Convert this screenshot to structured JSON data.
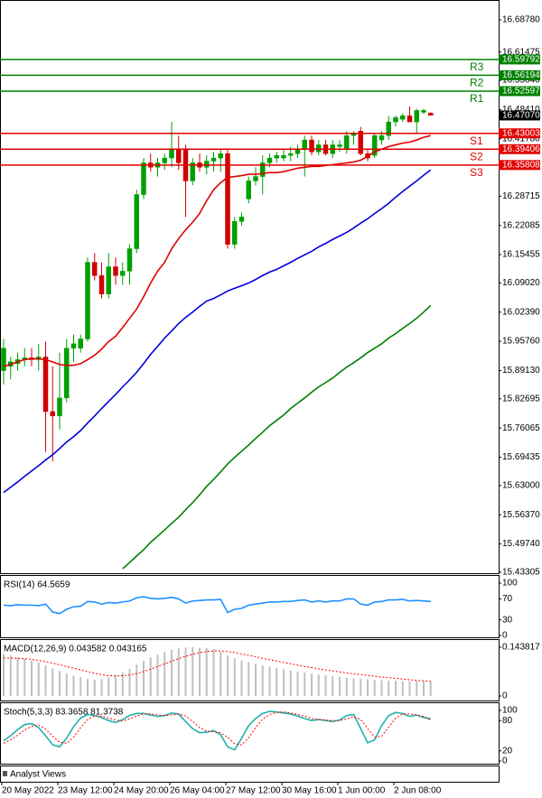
{
  "chart_data": [
    {
      "type": "candlestick",
      "categories": [
        "20 May 2022",
        null,
        null,
        null,
        null,
        null,
        null,
        null,
        "23 May 12:00",
        null,
        null,
        null,
        null,
        null,
        null,
        null,
        "24 May 20:00",
        null,
        null,
        null,
        null,
        null,
        null,
        null,
        "26 May 04:00",
        null,
        null,
        null,
        null,
        null,
        null,
        null,
        "27 May 12:00",
        null,
        null,
        null,
        null,
        null,
        null,
        null,
        "30 May 16:00",
        null,
        null,
        null,
        null,
        null,
        null,
        null,
        "1 Jun 00:00",
        null,
        null,
        null,
        null,
        null,
        null,
        null,
        "2 Jun 08:00",
        null,
        null,
        null,
        null,
        null
      ],
      "open": [
        15.891,
        15.901,
        15.907,
        15.916,
        15.92,
        15.916,
        15.922,
        15.798,
        15.788,
        15.829,
        15.942,
        15.942,
        15.963,
        16.137,
        16.107,
        16.065,
        16.127,
        16.107,
        16.117,
        16.168,
        16.291,
        16.363,
        16.353,
        16.363,
        16.374,
        16.394,
        16.394,
        16.322,
        16.363,
        16.353,
        16.367,
        16.374,
        16.384,
        16.178,
        16.23,
        16.281,
        16.322,
        16.332,
        16.363,
        16.374,
        16.374,
        16.38,
        16.384,
        16.394,
        16.415,
        16.388,
        16.404,
        16.384,
        16.4,
        16.394,
        16.425,
        16.435,
        16.384,
        16.38,
        16.415,
        16.425,
        16.456,
        16.462,
        16.47,
        16.456,
        16.478,
        16.476
      ],
      "high": [
        15.963,
        15.922,
        15.932,
        15.942,
        15.942,
        15.952,
        15.957,
        15.901,
        15.932,
        15.963,
        15.973,
        15.973,
        16.148,
        16.158,
        16.137,
        16.158,
        16.148,
        16.137,
        16.178,
        16.302,
        16.374,
        16.384,
        16.374,
        16.384,
        16.456,
        16.425,
        16.404,
        16.374,
        16.384,
        16.38,
        16.388,
        16.394,
        16.394,
        16.24,
        16.25,
        16.332,
        16.353,
        16.38,
        16.384,
        16.388,
        16.394,
        16.4,
        16.404,
        16.425,
        16.425,
        16.415,
        16.415,
        16.415,
        16.415,
        16.435,
        16.435,
        16.445,
        16.394,
        16.429,
        16.435,
        16.47,
        16.47,
        16.476,
        16.491,
        16.486,
        16.486,
        16.478
      ],
      "low": [
        15.86,
        15.871,
        15.891,
        15.901,
        15.901,
        15.891,
        15.706,
        15.685,
        15.757,
        15.819,
        15.911,
        15.932,
        15.957,
        16.096,
        16.055,
        16.055,
        16.086,
        16.086,
        16.086,
        16.158,
        16.281,
        16.343,
        16.332,
        16.347,
        16.353,
        16.347,
        16.24,
        16.312,
        16.343,
        16.337,
        16.343,
        16.343,
        16.168,
        16.168,
        16.22,
        16.271,
        16.312,
        16.291,
        16.353,
        16.363,
        16.367,
        16.367,
        16.374,
        16.332,
        16.38,
        16.38,
        16.38,
        16.374,
        16.388,
        16.384,
        16.404,
        16.38,
        16.367,
        16.374,
        16.404,
        16.415,
        16.445,
        16.456,
        16.456,
        16.429,
        16.474,
        16.474
      ],
      "close": [
        15.942,
        15.911,
        15.916,
        15.92,
        15.916,
        15.922,
        15.798,
        15.788,
        15.829,
        15.942,
        15.952,
        15.963,
        16.137,
        16.107,
        16.065,
        16.127,
        16.107,
        16.117,
        16.168,
        16.291,
        16.363,
        16.353,
        16.363,
        16.374,
        16.394,
        16.363,
        16.322,
        16.363,
        16.353,
        16.367,
        16.374,
        16.384,
        16.178,
        16.23,
        16.24,
        16.322,
        16.332,
        16.363,
        16.374,
        16.38,
        16.38,
        16.384,
        16.394,
        16.415,
        16.388,
        16.404,
        16.384,
        16.404,
        16.404,
        16.425,
        16.429,
        16.384,
        16.374,
        16.425,
        16.425,
        16.456,
        16.466,
        16.47,
        16.456,
        16.482,
        16.482,
        16.471
      ],
      "up_color": "#00a000",
      "down_color": "#d00000",
      "series": [
        {
          "color": "#e00000",
          "values": [
            15.901,
            15.905,
            15.911,
            15.916,
            15.918,
            15.918,
            15.916,
            15.911,
            15.905,
            15.903,
            15.903,
            15.907,
            15.916,
            15.926,
            15.94,
            15.957,
            15.969,
            15.989,
            16.01,
            16.031,
            16.059,
            16.09,
            16.117,
            16.137,
            16.168,
            16.191,
            16.211,
            16.228,
            16.248,
            16.277,
            16.302,
            16.318,
            16.33,
            16.332,
            16.334,
            16.337,
            16.337,
            16.339,
            16.341,
            16.341,
            16.343,
            16.347,
            16.351,
            16.353,
            16.355,
            16.355,
            16.357,
            16.359,
            16.361,
            16.363,
            16.365,
            16.369,
            16.378,
            16.388,
            16.394,
            16.4,
            16.404,
            16.408,
            16.41,
            16.415,
            16.421,
            16.425
          ]
        },
        {
          "color": "#0000dd",
          "values": [
            15.614,
            15.626,
            15.638,
            15.651,
            15.663,
            15.675,
            15.688,
            15.7,
            15.714,
            15.729,
            15.741,
            15.755,
            15.772,
            15.788,
            15.805,
            15.821,
            15.837,
            15.854,
            15.87,
            15.887,
            15.907,
            15.928,
            15.946,
            15.965,
            15.981,
            15.998,
            16.012,
            16.024,
            16.037,
            16.049,
            16.055,
            16.063,
            16.072,
            16.078,
            16.084,
            16.09,
            16.098,
            16.107,
            16.115,
            16.121,
            16.129,
            16.137,
            16.146,
            16.154,
            16.162,
            16.172,
            16.18,
            16.189,
            16.197,
            16.205,
            16.215,
            16.226,
            16.236,
            16.248,
            16.259,
            16.271,
            16.285,
            16.298,
            16.31,
            16.322,
            16.335,
            16.347
          ]
        },
        {
          "color": "#008000",
          "values": [
            null,
            null,
            null,
            null,
            null,
            null,
            null,
            null,
            null,
            null,
            null,
            null,
            null,
            null,
            null,
            null,
            null,
            15.441,
            15.455,
            15.47,
            15.484,
            15.501,
            15.515,
            15.529,
            15.544,
            15.558,
            15.575,
            15.591,
            15.609,
            15.628,
            15.644,
            15.661,
            15.679,
            15.694,
            15.708,
            15.722,
            15.737,
            15.751,
            15.766,
            15.778,
            15.79,
            15.805,
            15.817,
            15.829,
            15.842,
            15.854,
            15.864,
            15.874,
            15.887,
            15.899,
            15.909,
            15.92,
            15.932,
            15.942,
            15.952,
            15.965,
            15.975,
            15.987,
            15.998,
            16.01,
            16.024,
            16.039
          ]
        }
      ],
      "levels": [
        {
          "label": "R3",
          "value": 16.59792,
          "color": "#008000"
        },
        {
          "label": "R2",
          "value": 16.56194,
          "color": "#008000"
        },
        {
          "label": "R1",
          "value": 16.52597,
          "color": "#008000"
        },
        {
          "label": "S1",
          "value": 16.43003,
          "color": "#e00000"
        },
        {
          "label": "S2",
          "value": 16.39406,
          "color": "#e00000"
        },
        {
          "label": "S3",
          "value": 16.35808,
          "color": "#e00000"
        }
      ],
      "last_price": {
        "value": 16.4707,
        "label": "16.47070"
      },
      "ylim": [
        15.4287,
        16.733
      ],
      "yticks": [
        {
          "value": 16.6878,
          "label": "16.68780"
        },
        {
          "value": 16.61475,
          "label": "16.61475"
        },
        {
          "value": 16.5504,
          "label": "16.55040"
        },
        {
          "value": 16.4841,
          "label": "16.48410"
        },
        {
          "value": 16.4178,
          "label": "16.41780"
        },
        {
          "value": 16.28715,
          "label": "16.28715"
        },
        {
          "value": 16.22085,
          "label": "16.22085"
        },
        {
          "value": 16.15455,
          "label": "16.15455"
        },
        {
          "value": 16.0902,
          "label": "16.09020"
        },
        {
          "value": 16.0239,
          "label": "16.02390"
        },
        {
          "value": 15.9576,
          "label": "15.95760"
        },
        {
          "value": 15.8913,
          "label": "15.89130"
        },
        {
          "value": 15.82695,
          "label": "15.82695"
        },
        {
          "value": 15.76065,
          "label": "15.76065"
        },
        {
          "value": 15.69435,
          "label": "15.69435"
        },
        {
          "value": 15.63,
          "label": "15.63000"
        },
        {
          "value": 15.5637,
          "label": "15.56370"
        },
        {
          "value": 15.4974,
          "label": "15.49740"
        },
        {
          "value": 15.43305,
          "label": "15.43305"
        }
      ]
    },
    {
      "type": "line",
      "title": "RSI(14) 64.5659",
      "series": [
        {
          "color": "#1e90ff",
          "values": [
            58,
            57,
            59,
            58,
            58,
            57,
            60,
            45,
            42,
            50,
            55,
            56,
            65,
            64,
            60,
            63,
            62,
            64,
            66,
            72,
            74,
            71,
            70,
            71,
            73,
            70,
            62,
            66,
            67,
            68,
            68,
            69,
            44,
            50,
            52,
            58,
            60,
            62,
            64,
            64,
            65,
            65,
            67,
            68,
            64,
            66,
            64,
            66,
            66,
            70,
            70,
            60,
            58,
            64,
            65,
            68,
            68,
            69,
            66,
            67,
            66,
            65
          ]
        }
      ],
      "ylim": [
        -3.4,
        113.8
      ],
      "yticks": [
        0,
        30,
        70,
        100
      ]
    },
    {
      "type": "bar",
      "title": "MACD(12,26,9) 0.043582 0.043165",
      "series": [
        {
          "type": "bar",
          "color": "#c0c0c0",
          "values": [
            0.125,
            0.12,
            0.115,
            0.11,
            0.104,
            0.098,
            0.09,
            0.082,
            0.074,
            0.066,
            0.06,
            0.055,
            0.05,
            0.048,
            0.05,
            0.055,
            0.062,
            0.07,
            0.08,
            0.092,
            0.104,
            0.114,
            0.122,
            0.13,
            0.136,
            0.14,
            0.143,
            0.1438,
            0.142,
            0.141,
            0.138,
            0.13,
            0.12,
            0.112,
            0.105,
            0.1,
            0.095,
            0.09,
            0.086,
            0.082,
            0.079,
            0.075,
            0.072,
            0.069,
            0.066,
            0.063,
            0.061,
            0.058,
            0.056,
            0.054,
            0.052,
            0.05,
            0.049,
            0.047,
            0.046,
            0.045,
            0.045,
            0.044,
            0.044,
            0.044,
            0.0436,
            0.043582
          ]
        },
        {
          "type": "line",
          "style": "dotted",
          "color": "#ff0000",
          "values": [
            0.112,
            0.112,
            0.111,
            0.11,
            0.108,
            0.105,
            0.101,
            0.097,
            0.092,
            0.087,
            0.082,
            0.077,
            0.072,
            0.067,
            0.063,
            0.06,
            0.059,
            0.06,
            0.062,
            0.066,
            0.072,
            0.079,
            0.087,
            0.095,
            0.103,
            0.11,
            0.117,
            0.123,
            0.128,
            0.131,
            0.133,
            0.133,
            0.131,
            0.128,
            0.124,
            0.12,
            0.116,
            0.111,
            0.107,
            0.103,
            0.099,
            0.095,
            0.091,
            0.087,
            0.084,
            0.08,
            0.077,
            0.074,
            0.071,
            0.068,
            0.065,
            0.063,
            0.061,
            0.058,
            0.056,
            0.054,
            0.052,
            0.05,
            0.048,
            0.046,
            0.0445,
            0.043165
          ]
        }
      ],
      "ylim": [
        -0.0133,
        0.1651
      ],
      "yticks": [
        0,
        0.143817
      ]
    },
    {
      "type": "line",
      "title": "Stoch(5,3,3) 83.3658 81.3738",
      "series": [
        {
          "color": "#20b2aa",
          "values": [
            40,
            50,
            62,
            72,
            74,
            66,
            50,
            32,
            28,
            45,
            68,
            85,
            92,
            90,
            86,
            80,
            76,
            82,
            90,
            94,
            94,
            91,
            88,
            90,
            95,
            93,
            78,
            64,
            56,
            57,
            60,
            52,
            28,
            22,
            45,
            70,
            84,
            94,
            98,
            97,
            95,
            93,
            89,
            84,
            80,
            82,
            80,
            78,
            81,
            90,
            92,
            64,
            36,
            42,
            70,
            90,
            96,
            94,
            88,
            91,
            86,
            83.3658
          ]
        },
        {
          "style": "dotted",
          "color": "#ff0000",
          "values": [
            35,
            42,
            51,
            61,
            69,
            71,
            63,
            49,
            37,
            35,
            47,
            66,
            82,
            89,
            89,
            85,
            81,
            79,
            83,
            89,
            93,
            93,
            91,
            90,
            91,
            93,
            89,
            78,
            66,
            59,
            58,
            56,
            47,
            34,
            32,
            46,
            66,
            83,
            92,
            96,
            97,
            95,
            92,
            89,
            84,
            82,
            81,
            80,
            80,
            83,
            88,
            82,
            64,
            47,
            49,
            67,
            85,
            93,
            93,
            91,
            88,
            81.3738
          ]
        }
      ],
      "ylim": [
        -5.4,
        114.3
      ],
      "yticks": [
        0,
        20,
        80,
        100
      ]
    }
  ],
  "footer": "Analyst Views"
}
